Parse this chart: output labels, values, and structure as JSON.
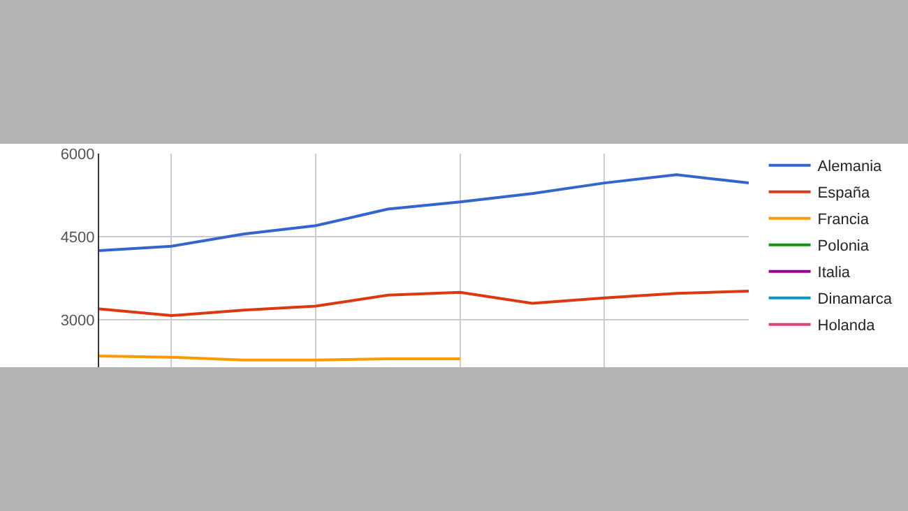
{
  "chart_data": {
    "type": "line",
    "categories": [
      null,
      null,
      null,
      null,
      null,
      null,
      null,
      null,
      null,
      null
    ],
    "series": [
      {
        "name": "Alemania",
        "color": "#3366cc",
        "values": [
          4250,
          4330,
          4550,
          4700,
          5000,
          5130,
          5280,
          5470,
          5620,
          5470
        ]
      },
      {
        "name": "España",
        "color": "#dc3912",
        "values": [
          3200,
          3080,
          3180,
          3250,
          3450,
          3500,
          3300,
          3400,
          3480,
          3520
        ]
      },
      {
        "name": "Francia",
        "color": "#ff9900",
        "values": [
          2350,
          2330,
          2280,
          2280,
          2300,
          2300,
          null,
          null,
          null,
          null
        ]
      },
      {
        "name": "Polonia",
        "color": "#109618",
        "values": [
          null,
          null,
          null,
          null,
          null,
          null,
          null,
          null,
          null,
          null
        ]
      },
      {
        "name": "Italia",
        "color": "#990099",
        "values": [
          null,
          null,
          null,
          null,
          null,
          null,
          null,
          null,
          null,
          null
        ]
      },
      {
        "name": "Dinamarca",
        "color": "#0099c6",
        "values": [
          null,
          null,
          null,
          null,
          null,
          null,
          null,
          null,
          null,
          null
        ]
      },
      {
        "name": "Holanda",
        "color": "#dd4477",
        "values": [
          null,
          null,
          null,
          null,
          null,
          null,
          null,
          null,
          null,
          null
        ]
      }
    ],
    "ylim": [
      2150,
      6000
    ],
    "yticks": [
      3000,
      4500,
      6000
    ],
    "grid": true,
    "legend": "right",
    "tick_labels": "y",
    "marker": "none",
    "line_style": "solid"
  }
}
